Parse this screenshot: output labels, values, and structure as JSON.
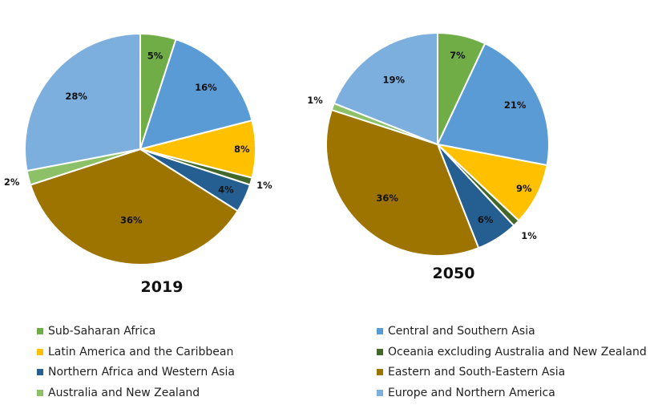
{
  "chart_data": [
    {
      "type": "pie",
      "title": "2019",
      "categories": [
        "Sub-Saharan Africa",
        "Central and Southern Asia",
        "Latin America and the Caribbean",
        "Oceania excluding Australia and New Zealand",
        "Northern Africa and Western Asia",
        "Eastern and South-Eastern Asia",
        "Australia and New Zealand",
        "Europe and Northern America"
      ],
      "values": [
        5,
        16,
        8,
        1,
        4,
        36,
        2,
        28
      ],
      "labels": [
        "5%",
        "16%",
        "8%",
        "1%",
        "4%",
        "36%",
        "2%",
        "28%"
      ],
      "start_angle": "top",
      "direction": "clockwise"
    },
    {
      "type": "pie",
      "title": "2050",
      "categories": [
        "Sub-Saharan Africa",
        "Central and Southern Asia",
        "Latin America and the Caribbean",
        "Oceania excluding Australia and New Zealand",
        "Northern Africa and Western Asia",
        "Eastern and South-Eastern Asia",
        "Australia and New Zealand",
        "Europe and Northern America"
      ],
      "values": [
        7,
        21,
        9,
        1,
        6,
        36,
        1,
        19
      ],
      "labels": [
        "7%",
        "21%",
        "9%",
        "1%",
        "6%",
        "36%",
        "1%",
        "19%"
      ],
      "start_angle": "top",
      "direction": "clockwise"
    }
  ],
  "colors": {
    "Sub-Saharan Africa": "#70ad47",
    "Central and Southern Asia": "#5b9bd5",
    "Latin America and the Caribbean": "#ffc000",
    "Oceania excluding Australia and New Zealand": "#43682b",
    "Northern Africa and Western Asia": "#255e91",
    "Eastern and South-Eastern Asia": "#9e7400",
    "Australia and New Zealand": "#8cc168",
    "Europe and Northern America": "#7cafdd"
  },
  "legend": {
    "placement": "bottom",
    "items": [
      {
        "label": "Sub-Saharan Africa"
      },
      {
        "label": "Central and Southern Asia"
      },
      {
        "label": "Latin America and the Caribbean"
      },
      {
        "label": "Oceania excluding Australia and New Zealand"
      },
      {
        "label": "Northern Africa and Western Asia"
      },
      {
        "label": "Eastern and South-Eastern Asia"
      },
      {
        "label": "Australia and New Zealand"
      },
      {
        "label": "Europe and Northern America"
      }
    ]
  }
}
